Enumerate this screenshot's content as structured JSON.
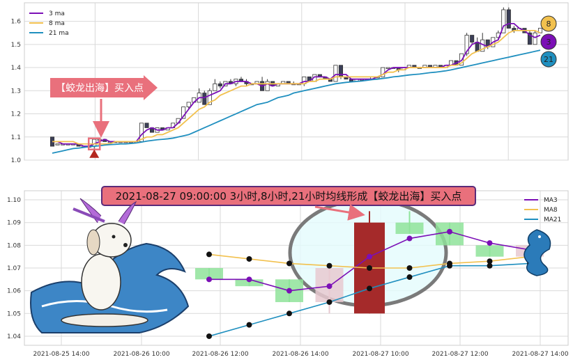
{
  "colors": {
    "ma3": "#7b0fb6",
    "ma8": "#f2c14e",
    "ma21": "#1f8fbf",
    "candle_up_fill": "#ffffff",
    "candle_down_fill": "#3b3f58",
    "signal": "#e9707c",
    "signal_marker": "#b3261e",
    "zoom_up": "#8fe39a",
    "zoom_big": "#a52a2a",
    "zoom_faint": "#e7c9d0",
    "grid": "#d9d9d9"
  },
  "top_panel": {
    "legend": [
      "3 ma",
      "8 ma",
      "21 ma"
    ],
    "signal_label": "【蛟龙出海】买入点",
    "end_badges": [
      "8",
      "3",
      "21"
    ]
  },
  "bottom_panel": {
    "title": "2021-08-27 09:00:00 3小时,8小时,21小时均线形成【蛟龙出海】买入点",
    "legend": [
      "MA3",
      "MA8",
      "MA21"
    ]
  },
  "chart_data": [
    {
      "type": "line",
      "title": "",
      "xlabel": "",
      "ylabel": "",
      "ylim": [
        1.0,
        1.68
      ],
      "yticks": [
        "1.0",
        "1.1",
        "1.2",
        "1.3",
        "1.4",
        "1.5",
        "1.6"
      ],
      "grid": true,
      "legend_position": "top-left",
      "candles": [
        [
          1.1,
          1.06,
          1.1,
          1.06
        ],
        [
          1.07,
          1.07,
          1.07,
          1.07
        ],
        [
          1.07,
          1.07,
          1.07,
          1.07
        ],
        [
          1.07,
          1.07,
          1.07,
          1.07
        ],
        [
          1.07,
          1.07,
          1.07,
          1.07
        ],
        [
          1.07,
          1.06,
          1.07,
          1.06
        ],
        [
          1.06,
          1.06,
          1.06,
          1.06
        ],
        [
          1.06,
          1.06,
          1.06,
          1.06
        ],
        [
          1.06,
          1.09,
          1.09,
          1.05
        ],
        [
          1.09,
          1.09,
          1.09,
          1.09
        ],
        [
          1.09,
          1.08,
          1.09,
          1.08
        ],
        [
          1.08,
          1.08,
          1.08,
          1.08
        ],
        [
          1.08,
          1.08,
          1.08,
          1.08
        ],
        [
          1.08,
          1.08,
          1.08,
          1.08
        ],
        [
          1.08,
          1.08,
          1.08,
          1.08
        ],
        [
          1.08,
          1.08,
          1.08,
          1.08
        ],
        [
          1.08,
          1.08,
          1.08,
          1.08
        ],
        [
          1.08,
          1.16,
          1.16,
          1.08
        ],
        [
          1.16,
          1.14,
          1.16,
          1.14
        ],
        [
          1.14,
          1.12,
          1.14,
          1.12
        ],
        [
          1.12,
          1.14,
          1.14,
          1.12
        ],
        [
          1.14,
          1.13,
          1.14,
          1.13
        ],
        [
          1.13,
          1.14,
          1.14,
          1.13
        ],
        [
          1.14,
          1.16,
          1.16,
          1.14
        ],
        [
          1.16,
          1.18,
          1.18,
          1.16
        ],
        [
          1.18,
          1.23,
          1.23,
          1.18
        ],
        [
          1.23,
          1.25,
          1.25,
          1.22
        ],
        [
          1.25,
          1.27,
          1.27,
          1.25
        ],
        [
          1.25,
          1.29,
          1.31,
          1.25
        ],
        [
          1.29,
          1.24,
          1.3,
          1.24
        ],
        [
          1.24,
          1.3,
          1.31,
          1.24
        ],
        [
          1.3,
          1.33,
          1.35,
          1.3
        ],
        [
          1.33,
          1.32,
          1.34,
          1.31
        ],
        [
          1.32,
          1.34,
          1.34,
          1.32
        ],
        [
          1.34,
          1.33,
          1.35,
          1.33
        ],
        [
          1.33,
          1.35,
          1.35,
          1.32
        ],
        [
          1.35,
          1.34,
          1.36,
          1.34
        ],
        [
          1.34,
          1.33,
          1.35,
          1.32
        ],
        [
          1.33,
          1.33,
          1.33,
          1.33
        ],
        [
          1.33,
          1.34,
          1.34,
          1.33
        ],
        [
          1.34,
          1.3,
          1.36,
          1.3
        ],
        [
          1.3,
          1.34,
          1.35,
          1.3
        ],
        [
          1.34,
          1.32,
          1.34,
          1.32
        ],
        [
          1.32,
          1.33,
          1.33,
          1.32
        ],
        [
          1.33,
          1.34,
          1.34,
          1.33
        ],
        [
          1.34,
          1.33,
          1.34,
          1.33
        ],
        [
          1.33,
          1.33,
          1.34,
          1.33
        ],
        [
          1.33,
          1.33,
          1.33,
          1.33
        ],
        [
          1.33,
          1.36,
          1.36,
          1.32
        ],
        [
          1.36,
          1.34,
          1.36,
          1.34
        ],
        [
          1.34,
          1.37,
          1.37,
          1.34
        ],
        [
          1.37,
          1.36,
          1.37,
          1.36
        ],
        [
          1.36,
          1.35,
          1.36,
          1.35
        ],
        [
          1.35,
          1.34,
          1.35,
          1.34
        ],
        [
          1.34,
          1.41,
          1.41,
          1.34
        ],
        [
          1.41,
          1.36,
          1.41,
          1.35
        ],
        [
          1.36,
          1.35,
          1.36,
          1.35
        ],
        [
          1.35,
          1.34,
          1.35,
          1.34
        ],
        [
          1.34,
          1.35,
          1.35,
          1.34
        ],
        [
          1.35,
          1.35,
          1.35,
          1.35
        ],
        [
          1.35,
          1.35,
          1.35,
          1.35
        ],
        [
          1.35,
          1.36,
          1.36,
          1.35
        ],
        [
          1.36,
          1.36,
          1.36,
          1.36
        ],
        [
          1.36,
          1.4,
          1.4,
          1.36
        ],
        [
          1.4,
          1.4,
          1.4,
          1.4
        ],
        [
          1.4,
          1.4,
          1.4,
          1.4
        ],
        [
          1.4,
          1.39,
          1.4,
          1.38
        ],
        [
          1.39,
          1.4,
          1.4,
          1.39
        ],
        [
          1.4,
          1.41,
          1.41,
          1.4
        ],
        [
          1.41,
          1.4,
          1.41,
          1.4
        ],
        [
          1.4,
          1.4,
          1.4,
          1.4
        ],
        [
          1.4,
          1.41,
          1.41,
          1.4
        ],
        [
          1.41,
          1.4,
          1.41,
          1.4
        ],
        [
          1.4,
          1.41,
          1.41,
          1.4
        ],
        [
          1.41,
          1.4,
          1.41,
          1.4
        ],
        [
          1.4,
          1.41,
          1.41,
          1.4
        ],
        [
          1.41,
          1.43,
          1.43,
          1.41
        ],
        [
          1.43,
          1.41,
          1.43,
          1.41
        ],
        [
          1.41,
          1.46,
          1.46,
          1.41
        ],
        [
          1.46,
          1.54,
          1.55,
          1.45
        ],
        [
          1.54,
          1.51,
          1.54,
          1.5
        ],
        [
          1.51,
          1.47,
          1.53,
          1.47
        ],
        [
          1.47,
          1.52,
          1.55,
          1.47
        ],
        [
          1.52,
          1.49,
          1.52,
          1.48
        ],
        [
          1.49,
          1.53,
          1.53,
          1.49
        ],
        [
          1.53,
          1.55,
          1.56,
          1.52
        ],
        [
          1.55,
          1.65,
          1.66,
          1.55
        ],
        [
          1.65,
          1.57,
          1.66,
          1.57
        ],
        [
          1.57,
          1.56,
          1.58,
          1.55
        ],
        [
          1.56,
          1.57,
          1.57,
          1.56
        ],
        [
          1.57,
          1.55,
          1.57,
          1.55
        ],
        [
          1.55,
          1.5,
          1.56,
          1.5
        ],
        [
          1.5,
          1.55,
          1.56,
          1.5
        ],
        [
          1.55,
          1.57,
          1.57,
          1.55
        ]
      ],
      "series": [
        {
          "name": "3 ma",
          "values": [
            1.08,
            1.08,
            1.07,
            1.07,
            1.07,
            1.07,
            1.06,
            1.06,
            1.07,
            1.08,
            1.09,
            1.08,
            1.08,
            1.08,
            1.08,
            1.08,
            1.08,
            1.11,
            1.13,
            1.14,
            1.13,
            1.13,
            1.14,
            1.14,
            1.16,
            1.19,
            1.22,
            1.25,
            1.27,
            1.27,
            1.28,
            1.29,
            1.3,
            1.33,
            1.33,
            1.34,
            1.34,
            1.34,
            1.33,
            1.33,
            1.32,
            1.33,
            1.32,
            1.33,
            1.33,
            1.33,
            1.33,
            1.33,
            1.34,
            1.34,
            1.36,
            1.36,
            1.36,
            1.35,
            1.37,
            1.37,
            1.37,
            1.35,
            1.35,
            1.35,
            1.35,
            1.35,
            1.36,
            1.37,
            1.39,
            1.4,
            1.4,
            1.4,
            1.4,
            1.4,
            1.4,
            1.4,
            1.4,
            1.4,
            1.4,
            1.41,
            1.41,
            1.42,
            1.43,
            1.47,
            1.5,
            1.51,
            1.5,
            1.49,
            1.51,
            1.52,
            1.58,
            1.59,
            1.59,
            1.57,
            1.56,
            1.54,
            1.53,
            1.54
          ]
        },
        {
          "name": "8 ma",
          "values": [
            1.08,
            1.08,
            1.08,
            1.08,
            1.08,
            1.07,
            1.07,
            1.07,
            1.07,
            1.07,
            1.07,
            1.07,
            1.08,
            1.08,
            1.08,
            1.08,
            1.08,
            1.09,
            1.1,
            1.1,
            1.11,
            1.11,
            1.12,
            1.13,
            1.14,
            1.16,
            1.18,
            1.2,
            1.22,
            1.23,
            1.25,
            1.26,
            1.28,
            1.29,
            1.3,
            1.31,
            1.32,
            1.32,
            1.33,
            1.33,
            1.33,
            1.33,
            1.33,
            1.33,
            1.33,
            1.33,
            1.33,
            1.33,
            1.33,
            1.34,
            1.34,
            1.35,
            1.35,
            1.35,
            1.36,
            1.36,
            1.36,
            1.36,
            1.36,
            1.36,
            1.36,
            1.36,
            1.36,
            1.37,
            1.38,
            1.38,
            1.39,
            1.39,
            1.4,
            1.4,
            1.4,
            1.4,
            1.4,
            1.4,
            1.4,
            1.4,
            1.41,
            1.41,
            1.42,
            1.44,
            1.46,
            1.47,
            1.48,
            1.49,
            1.5,
            1.51,
            1.53,
            1.55,
            1.56,
            1.56,
            1.56,
            1.56,
            1.56,
            1.55
          ]
        },
        {
          "name": "21 ma",
          "values": [
            1.03,
            1.035,
            1.04,
            1.045,
            1.05,
            1.052,
            1.055,
            1.058,
            1.06,
            1.062,
            1.065,
            1.067,
            1.068,
            1.07,
            1.07,
            1.072,
            1.074,
            1.078,
            1.082,
            1.085,
            1.088,
            1.09,
            1.092,
            1.095,
            1.1,
            1.105,
            1.11,
            1.12,
            1.13,
            1.14,
            1.15,
            1.16,
            1.17,
            1.18,
            1.19,
            1.2,
            1.21,
            1.22,
            1.23,
            1.24,
            1.245,
            1.25,
            1.26,
            1.27,
            1.275,
            1.28,
            1.29,
            1.295,
            1.3,
            1.305,
            1.31,
            1.315,
            1.32,
            1.325,
            1.33,
            1.333,
            1.336,
            1.338,
            1.34,
            1.342,
            1.345,
            1.348,
            1.35,
            1.353,
            1.356,
            1.36,
            1.362,
            1.365,
            1.368,
            1.37,
            1.372,
            1.375,
            1.378,
            1.38,
            1.383,
            1.386,
            1.39,
            1.395,
            1.4,
            1.405,
            1.41,
            1.415,
            1.42,
            1.425,
            1.43,
            1.435,
            1.44,
            1.445,
            1.45,
            1.455,
            1.46,
            1.465,
            1.47,
            1.475
          ]
        }
      ],
      "signal_index": 8,
      "signal_value": 1.07
    },
    {
      "type": "line",
      "title": "2021-08-27 09:00:00 3小时,8小时,21小时均线形成【蛟龙出海】买入点",
      "xlabel": "",
      "ylabel": "",
      "ylim": [
        1.036,
        1.104
      ],
      "yticks": [
        "1.04",
        "1.05",
        "1.06",
        "1.07",
        "1.08",
        "1.09",
        "1.10"
      ],
      "xticks": [
        "2021-08-25 14:00",
        "2021-08-26 10:00",
        "2021-08-26 12:00",
        "2021-08-26 14:00",
        "2021-08-27 10:00",
        "2021-08-27 12:00",
        "2021-08-27 14:00"
      ],
      "grid": true,
      "legend_position": "top-right",
      "candles": [
        [
          1.065,
          1.07,
          1.07,
          1.065
        ],
        [
          1.062,
          1.065,
          1.065,
          1.062
        ],
        [
          1.055,
          1.065,
          1.065,
          1.055
        ],
        [
          1.055,
          1.07,
          1.07,
          1.05
        ],
        [
          1.05,
          1.09,
          1.095,
          1.05
        ],
        [
          1.085,
          1.09,
          1.095,
          1.085
        ],
        [
          1.08,
          1.09,
          1.09,
          1.08
        ],
        [
          1.075,
          1.08,
          1.08,
          1.075
        ],
        [
          1.075,
          1.08,
          1.08,
          1.075
        ]
      ],
      "candle_kinds": [
        "up",
        "up",
        "up",
        "faint",
        "big",
        "up",
        "up",
        "up",
        "faint"
      ],
      "series": [
        {
          "name": "MA3",
          "values": [
            1.065,
            1.065,
            1.06,
            1.062,
            1.075,
            1.083,
            1.086,
            1.081,
            1.078
          ]
        },
        {
          "name": "MA8",
          "values": [
            1.076,
            1.074,
            1.072,
            1.071,
            1.07,
            1.07,
            1.072,
            1.073,
            1.075
          ]
        },
        {
          "name": "MA21",
          "values": [
            1.04,
            1.045,
            1.05,
            1.055,
            1.061,
            1.066,
            1.071,
            1.071,
            1.072
          ]
        }
      ],
      "signal_index": 4
    }
  ]
}
